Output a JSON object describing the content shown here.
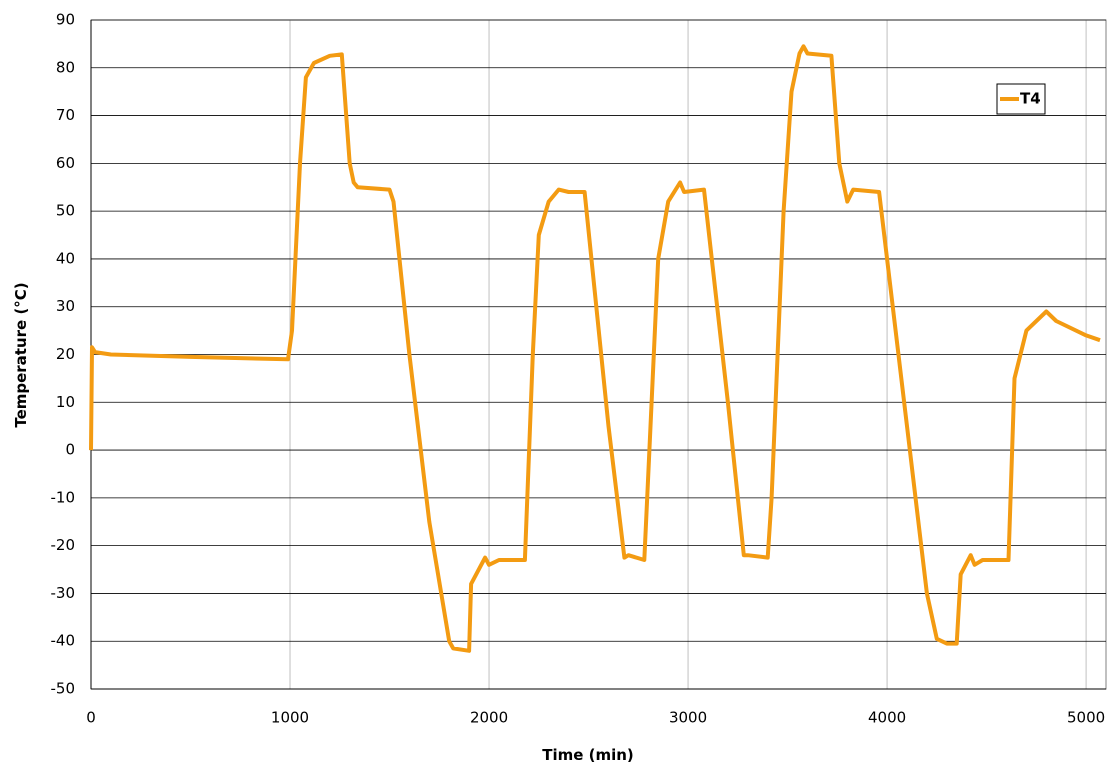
{
  "chart_data": {
    "type": "line",
    "x_label": "Time (min)",
    "y_label": "Temperature (°C)",
    "xlim": [
      0,
      5100
    ],
    "ylim": [
      -50,
      90
    ],
    "xticks": [
      0,
      1000,
      2000,
      3000,
      4000,
      5000
    ],
    "yticks": [
      -50,
      -40,
      -30,
      -20,
      -10,
      0,
      10,
      20,
      30,
      40,
      50,
      60,
      70,
      80,
      90
    ],
    "grid": true,
    "legend": "upper right",
    "series": [
      {
        "name": "T4",
        "color": "#f39b12",
        "x": [
          0,
          5,
          20,
          100,
          500,
          990,
          1010,
          1050,
          1080,
          1120,
          1200,
          1260,
          1300,
          1320,
          1340,
          1500,
          1520,
          1600,
          1700,
          1800,
          1820,
          1900,
          1910,
          1980,
          2000,
          2050,
          2180,
          2220,
          2250,
          2300,
          2350,
          2400,
          2480,
          2600,
          2680,
          2700,
          2780,
          2800,
          2850,
          2900,
          2960,
          2980,
          3080,
          3200,
          3280,
          3300,
          3400,
          3420,
          3480,
          3520,
          3560,
          3580,
          3600,
          3720,
          3760,
          3800,
          3830,
          3960,
          4100,
          4200,
          4250,
          4300,
          4350,
          4370,
          4420,
          4440,
          4480,
          4610,
          4640,
          4700,
          4800,
          4850,
          5000,
          5070
        ],
        "values": [
          0,
          21.5,
          20.5,
          20,
          19.5,
          19,
          25,
          60,
          78,
          81,
          82.5,
          82.8,
          60,
          56,
          55,
          54.5,
          52,
          20,
          -15,
          -40,
          -41.5,
          -42,
          -28,
          -22.5,
          -24,
          -23,
          -23,
          20,
          45,
          52,
          54.5,
          54,
          54,
          5,
          -22.5,
          -22,
          -23,
          -5,
          40,
          52,
          56,
          54,
          54.5,
          10,
          -22,
          -22,
          -22.5,
          -10,
          50,
          75,
          83,
          84.5,
          83,
          82.5,
          60,
          52,
          54.5,
          54,
          5,
          -30,
          -39.5,
          -40.5,
          -40.5,
          -26,
          -22,
          -24,
          -23,
          -23,
          15,
          25,
          29,
          27,
          24,
          23
        ]
      }
    ]
  }
}
